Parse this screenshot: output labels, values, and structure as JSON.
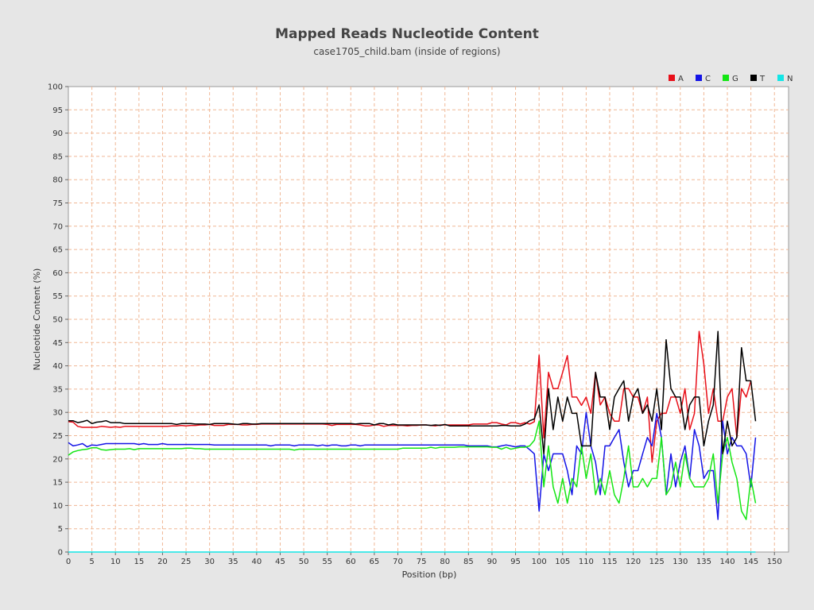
{
  "chart_data": {
    "type": "line",
    "title": "Mapped Reads Nucleotide Content",
    "subtitle": "case1705_child.bam (inside of regions)",
    "xlabel": "Position (bp)",
    "ylabel": "Nucleotide Content (%)",
    "xlim": [
      0,
      153
    ],
    "ylim": [
      0,
      100
    ],
    "x_ticks": [
      0,
      5,
      10,
      15,
      20,
      25,
      30,
      35,
      40,
      45,
      50,
      55,
      60,
      65,
      70,
      75,
      80,
      85,
      90,
      95,
      100,
      105,
      110,
      115,
      120,
      125,
      130,
      135,
      140,
      145,
      150
    ],
    "y_ticks": [
      0,
      5,
      10,
      15,
      20,
      25,
      30,
      35,
      40,
      45,
      50,
      55,
      60,
      65,
      70,
      75,
      80,
      85,
      90,
      95,
      100
    ],
    "grid": true,
    "legend_position": "top-right",
    "x_start": 0,
    "series": [
      {
        "name": "A",
        "color": "#e8101a",
        "values": [
          28.0,
          27.9,
          27.0,
          26.8,
          26.8,
          26.8,
          26.8,
          27.0,
          26.9,
          26.8,
          26.9,
          26.8,
          27.0,
          27.0,
          27.0,
          27.0,
          27.0,
          27.0,
          27.0,
          27.0,
          27.0,
          27.0,
          27.1,
          27.1,
          27.2,
          27.1,
          27.2,
          27.2,
          27.3,
          27.3,
          27.4,
          27.2,
          27.2,
          27.2,
          27.4,
          27.4,
          27.4,
          27.3,
          27.3,
          27.4,
          27.4,
          27.5,
          27.5,
          27.5,
          27.5,
          27.5,
          27.5,
          27.5,
          27.5,
          27.5,
          27.5,
          27.5,
          27.5,
          27.5,
          27.5,
          27.4,
          27.2,
          27.4,
          27.4,
          27.4,
          27.4,
          27.4,
          27.3,
          27.1,
          27.1,
          27.3,
          27.3,
          27.0,
          27.2,
          27.2,
          27.2,
          27.2,
          27.1,
          27.2,
          27.2,
          27.3,
          27.3,
          27.2,
          27.1,
          27.3,
          27.3,
          27.3,
          27.3,
          27.3,
          27.3,
          27.3,
          27.5,
          27.5,
          27.5,
          27.5,
          27.8,
          27.8,
          27.5,
          27.3,
          27.8,
          27.8,
          27.5,
          27.8,
          27.5,
          28.0,
          42.3,
          24.5,
          38.6,
          35.1,
          35.1,
          38.6,
          42.2,
          33.3,
          33.3,
          31.5,
          33.3,
          29.8,
          38.6,
          31.6,
          33.3,
          29.8,
          28.1,
          28.1,
          35.1,
          35.1,
          33.3,
          33.3,
          29.8,
          33.3,
          19.3,
          28.1,
          29.8,
          29.8,
          33.3,
          33.3,
          29.8,
          35.1,
          26.3,
          29.8,
          47.4,
          40.4,
          29.8,
          35.1,
          28.1,
          28.1,
          33.3,
          35.1,
          24.6,
          35.1,
          33.3,
          36.8
        ]
      },
      {
        "name": "C",
        "color": "#1414e6",
        "values": [
          23.5,
          22.8,
          23.0,
          23.3,
          22.6,
          23.0,
          22.9,
          23.1,
          23.3,
          23.3,
          23.3,
          23.3,
          23.3,
          23.3,
          23.3,
          23.1,
          23.3,
          23.1,
          23.1,
          23.1,
          23.3,
          23.1,
          23.1,
          23.1,
          23.1,
          23.1,
          23.1,
          23.1,
          23.1,
          23.1,
          23.1,
          23.0,
          23.0,
          23.0,
          23.0,
          23.0,
          23.0,
          23.0,
          23.0,
          23.0,
          23.0,
          23.0,
          23.0,
          22.8,
          23.0,
          23.0,
          23.0,
          23.0,
          22.8,
          23.0,
          23.0,
          23.0,
          23.0,
          22.8,
          23.0,
          22.8,
          23.0,
          23.0,
          22.8,
          22.8,
          23.0,
          23.0,
          22.8,
          23.0,
          23.0,
          23.0,
          23.0,
          23.0,
          23.0,
          23.0,
          23.0,
          23.0,
          23.0,
          23.0,
          23.0,
          23.0,
          23.0,
          23.0,
          23.0,
          23.0,
          23.0,
          23.0,
          23.0,
          23.0,
          23.0,
          22.8,
          22.8,
          22.8,
          22.8,
          22.8,
          22.6,
          22.6,
          22.8,
          23.0,
          22.8,
          22.6,
          22.8,
          22.8,
          22.0,
          21.1,
          8.8,
          21.0,
          17.5,
          21.1,
          21.1,
          21.1,
          17.5,
          12.3,
          22.8,
          21.1,
          30.0,
          22.8,
          19.3,
          12.3,
          22.8,
          22.8,
          24.6,
          26.3,
          19.3,
          14.0,
          17.5,
          17.5,
          21.1,
          24.6,
          22.8,
          29.8,
          24.6,
          12.3,
          21.1,
          14.0,
          19.3,
          22.8,
          15.8,
          26.3,
          22.8,
          15.8,
          17.5,
          17.5,
          7.0,
          28.1,
          21.1,
          24.6,
          22.8,
          22.8,
          21.1,
          14.0,
          24.6
        ]
      },
      {
        "name": "G",
        "color": "#14e614",
        "values": [
          20.8,
          21.5,
          21.8,
          22.0,
          22.1,
          22.4,
          22.4,
          22.0,
          21.9,
          22.0,
          22.1,
          22.1,
          22.1,
          22.2,
          22.0,
          22.2,
          22.2,
          22.2,
          22.2,
          22.2,
          22.2,
          22.2,
          22.2,
          22.2,
          22.2,
          22.3,
          22.3,
          22.2,
          22.2,
          22.1,
          22.1,
          22.1,
          22.1,
          22.1,
          22.1,
          22.1,
          22.1,
          22.1,
          22.1,
          22.1,
          22.1,
          22.1,
          22.1,
          22.1,
          22.1,
          22.1,
          22.1,
          22.1,
          21.9,
          22.1,
          22.1,
          22.1,
          22.1,
          22.1,
          22.1,
          22.1,
          22.1,
          22.1,
          22.1,
          22.1,
          22.1,
          22.1,
          22.1,
          22.1,
          22.1,
          22.1,
          22.1,
          22.1,
          22.1,
          22.1,
          22.1,
          22.3,
          22.3,
          22.3,
          22.3,
          22.3,
          22.3,
          22.5,
          22.3,
          22.5,
          22.5,
          22.5,
          22.5,
          22.6,
          22.6,
          22.6,
          22.6,
          22.6,
          22.6,
          22.6,
          22.5,
          22.5,
          22.1,
          22.5,
          22.1,
          22.3,
          22.5,
          22.5,
          22.8,
          24.0,
          28.1,
          14.0,
          22.8,
          14.0,
          10.5,
          15.8,
          10.5,
          15.8,
          14.0,
          22.8,
          15.8,
          21.1,
          12.3,
          15.8,
          12.3,
          17.5,
          12.3,
          10.5,
          15.8,
          22.8,
          14.0,
          14.0,
          15.8,
          14.0,
          15.8,
          15.8,
          24.6,
          12.3,
          14.0,
          19.3,
          14.0,
          21.1,
          15.8,
          14.0,
          14.0,
          14.0,
          15.8,
          21.1,
          10.5,
          21.1,
          24.6,
          19.3,
          15.8,
          8.8,
          7.0,
          15.8,
          10.5
        ]
      },
      {
        "name": "T",
        "color": "#000000",
        "values": [
          28.2,
          28.2,
          27.8,
          28.0,
          28.3,
          27.6,
          27.9,
          28.0,
          28.2,
          27.8,
          27.8,
          27.8,
          27.6,
          27.6,
          27.6,
          27.6,
          27.6,
          27.6,
          27.6,
          27.6,
          27.6,
          27.6,
          27.6,
          27.4,
          27.6,
          27.6,
          27.6,
          27.5,
          27.5,
          27.5,
          27.4,
          27.6,
          27.6,
          27.6,
          27.6,
          27.5,
          27.4,
          27.6,
          27.6,
          27.5,
          27.5,
          27.6,
          27.6,
          27.6,
          27.6,
          27.6,
          27.6,
          27.6,
          27.6,
          27.6,
          27.6,
          27.6,
          27.6,
          27.6,
          27.6,
          27.6,
          27.6,
          27.6,
          27.6,
          27.6,
          27.6,
          27.5,
          27.6,
          27.6,
          27.6,
          27.3,
          27.6,
          27.6,
          27.3,
          27.5,
          27.3,
          27.3,
          27.3,
          27.3,
          27.3,
          27.3,
          27.3,
          27.2,
          27.3,
          27.2,
          27.4,
          27.1,
          27.1,
          27.1,
          27.1,
          27.1,
          27.1,
          27.1,
          27.1,
          27.1,
          27.1,
          27.1,
          27.2,
          27.2,
          27.1,
          27.1,
          27.1,
          27.5,
          28.2,
          28.6,
          31.6,
          21.1,
          35.1,
          26.3,
          33.3,
          28.1,
          33.3,
          29.8,
          29.8,
          22.8,
          22.8,
          22.8,
          38.6,
          33.3,
          33.3,
          26.3,
          33.3,
          35.1,
          36.8,
          28.1,
          33.3,
          35.1,
          29.8,
          31.6,
          28.1,
          35.1,
          26.3,
          45.6,
          35.1,
          33.3,
          33.3,
          26.3,
          31.6,
          33.3,
          33.3,
          22.8,
          28.1,
          31.6,
          47.4,
          21.1,
          28.1,
          22.8,
          24.6,
          43.9,
          36.8,
          36.8,
          28.1
        ]
      },
      {
        "name": "N",
        "color": "#14e6e6",
        "values": [
          0,
          0,
          0,
          0,
          0,
          0,
          0,
          0,
          0,
          0,
          0,
          0,
          0,
          0,
          0,
          0,
          0,
          0,
          0,
          0,
          0,
          0,
          0,
          0,
          0,
          0,
          0,
          0,
          0,
          0,
          0,
          0,
          0,
          0,
          0,
          0,
          0,
          0,
          0,
          0,
          0,
          0,
          0,
          0,
          0,
          0,
          0,
          0,
          0,
          0,
          0,
          0,
          0,
          0,
          0,
          0,
          0,
          0,
          0,
          0,
          0,
          0,
          0,
          0,
          0,
          0,
          0,
          0,
          0,
          0,
          0,
          0,
          0,
          0,
          0,
          0,
          0,
          0,
          0,
          0,
          0,
          0,
          0,
          0,
          0,
          0,
          0,
          0,
          0,
          0,
          0,
          0,
          0,
          0,
          0,
          0,
          0,
          0,
          0,
          0,
          0,
          0,
          0,
          0,
          0,
          0,
          0,
          0,
          0,
          0,
          0,
          0,
          0,
          0,
          0,
          0,
          0,
          0,
          0,
          0,
          0,
          0,
          0,
          0,
          0,
          0,
          0,
          0,
          0,
          0,
          0,
          0,
          0,
          0,
          0,
          0,
          0,
          0,
          0,
          0,
          0,
          0,
          0,
          0,
          0,
          0,
          0
        ]
      }
    ]
  }
}
